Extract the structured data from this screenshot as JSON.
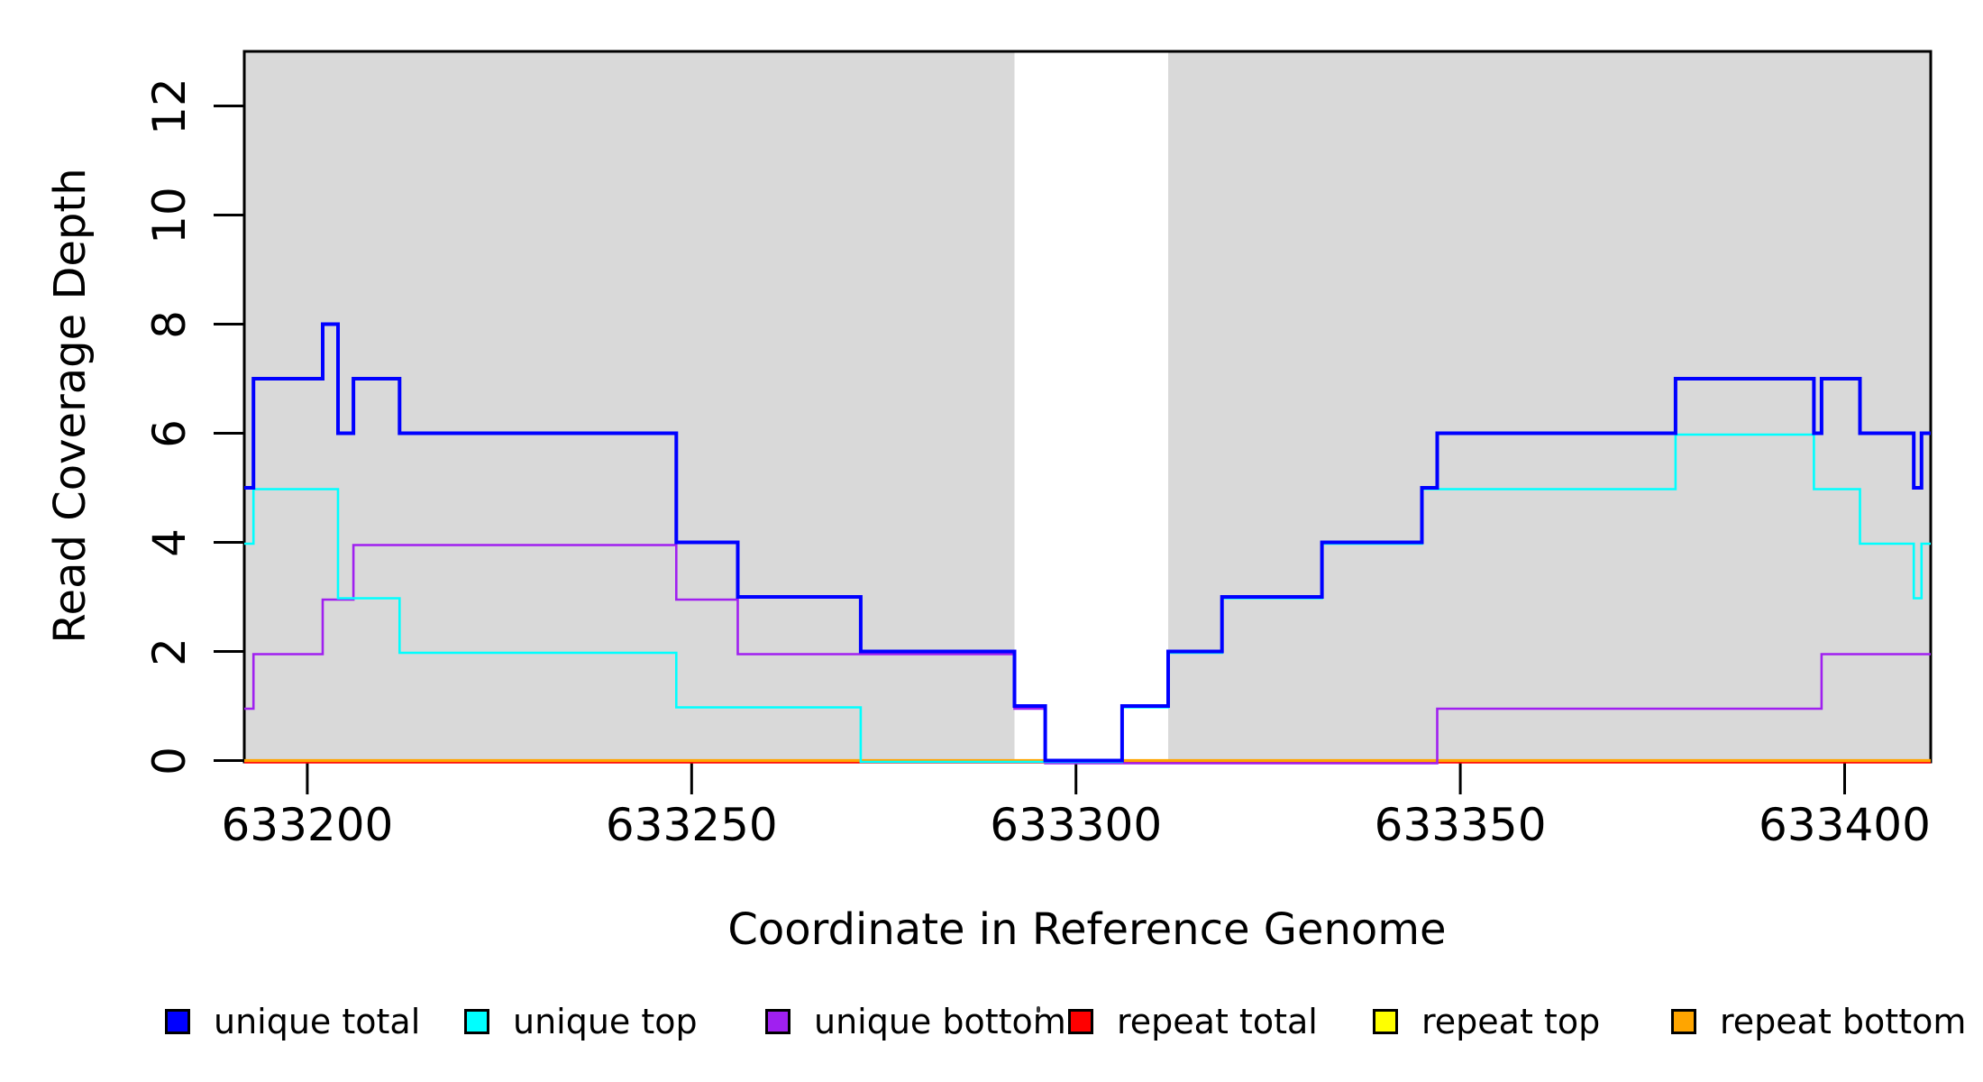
{
  "figure": {
    "kind": "read coverage step plot",
    "background": "#ffffff",
    "plot_bg_band_color": "#d9d9d9",
    "box_color": "#000000"
  },
  "x_axis": {
    "label": "Coordinate in Reference Genome",
    "tick_values": [
      633200,
      633250,
      633300,
      633350,
      633400
    ],
    "tick_labels": [
      "633200",
      "633250",
      "633300",
      "633350",
      "633400"
    ],
    "lim": [
      633191.8,
      633411.2
    ]
  },
  "y_axis": {
    "label": "Read Coverage Depth",
    "tick_values": [
      0,
      2,
      4,
      6,
      8,
      10,
      12
    ],
    "tick_labels": [
      "0",
      "2",
      "4",
      "6",
      "8",
      "10",
      "12"
    ],
    "lim": [
      0,
      13
    ]
  },
  "chart_data": {
    "type": "line",
    "step": true,
    "title": "",
    "xlabel": "Coordinate in Reference Genome",
    "ylabel": "Read Coverage Depth",
    "xlim": [
      633191.8,
      633411.2
    ],
    "ylim": [
      0,
      13
    ],
    "grid": false,
    "legend_position": "bottom",
    "shaded_regions": [
      {
        "x0": 633191.8,
        "x1": 633292,
        "color": "#d9d9d9"
      },
      {
        "x0": 633312,
        "x1": 633411.2,
        "color": "#d9d9d9"
      }
    ],
    "x_end": 633411.2,
    "series": [
      {
        "name": "unique total",
        "color": "#0000ff",
        "width": 4,
        "dy": 0,
        "points": [
          [
            633191.8,
            5
          ],
          [
            633193,
            7
          ],
          [
            633202,
            8
          ],
          [
            633204,
            6
          ],
          [
            633206,
            7
          ],
          [
            633212,
            6
          ],
          [
            633248,
            4
          ],
          [
            633256,
            3
          ],
          [
            633272,
            2
          ],
          [
            633292,
            1
          ],
          [
            633296,
            0
          ],
          [
            633306,
            1
          ],
          [
            633312,
            2
          ],
          [
            633319,
            3
          ],
          [
            633332,
            4
          ],
          [
            633345,
            5
          ],
          [
            633347,
            6
          ],
          [
            633378,
            7
          ],
          [
            633396,
            6
          ],
          [
            633397,
            7
          ],
          [
            633402,
            6
          ],
          [
            633409,
            5
          ],
          [
            633410,
            6
          ]
        ]
      },
      {
        "name": "unique top",
        "color": "#00ffff",
        "width": 2.6,
        "dy": 1.5,
        "points": [
          [
            633191.8,
            4
          ],
          [
            633193,
            5
          ],
          [
            633204,
            3
          ],
          [
            633212,
            2
          ],
          [
            633248,
            1
          ],
          [
            633272,
            0
          ],
          [
            633306,
            1
          ],
          [
            633312,
            2
          ],
          [
            633319,
            3
          ],
          [
            633332,
            4
          ],
          [
            633345,
            5
          ],
          [
            633378,
            6
          ],
          [
            633396,
            5
          ],
          [
            633402,
            4
          ],
          [
            633409,
            3
          ],
          [
            633410,
            4
          ]
        ]
      },
      {
        "name": "unique bottom",
        "color": "#a020f0",
        "width": 2.6,
        "dy": 3,
        "points": [
          [
            633191.8,
            1
          ],
          [
            633193,
            2
          ],
          [
            633202,
            3
          ],
          [
            633206,
            4
          ],
          [
            633248,
            3
          ],
          [
            633256,
            2
          ],
          [
            633292,
            1
          ],
          [
            633296,
            0
          ],
          [
            633347,
            1
          ],
          [
            633397,
            2
          ]
        ]
      },
      {
        "name": "repeat total",
        "color": "#ff0000",
        "width": 2.6,
        "dy": 2,
        "points": [
          [
            633191.8,
            0
          ]
        ]
      },
      {
        "name": "repeat top",
        "color": "#ffff00",
        "width": 2.6,
        "dy": 1,
        "points": [
          [
            633191.8,
            0
          ]
        ]
      },
      {
        "name": "repeat bottom",
        "color": "#ffa500",
        "width": 3.2,
        "dy": 0,
        "points": [
          [
            633191.8,
            0
          ]
        ]
      }
    ],
    "draw_order": [
      "repeat top",
      "repeat total",
      "repeat bottom",
      "unique bottom",
      "unique top",
      "unique total"
    ]
  },
  "legend": {
    "items": [
      {
        "label": "unique total",
        "color": "#0000ff"
      },
      {
        "label": "unique top",
        "color": "#00ffff"
      },
      {
        "label": "unique bottom",
        "color": "#a020f0"
      },
      {
        "label": "repeat total",
        "color": "#ff0000"
      },
      {
        "label": "repeat top",
        "color": "#ffff00"
      },
      {
        "label": "repeat bottom",
        "color": "#ffa500"
      }
    ]
  }
}
